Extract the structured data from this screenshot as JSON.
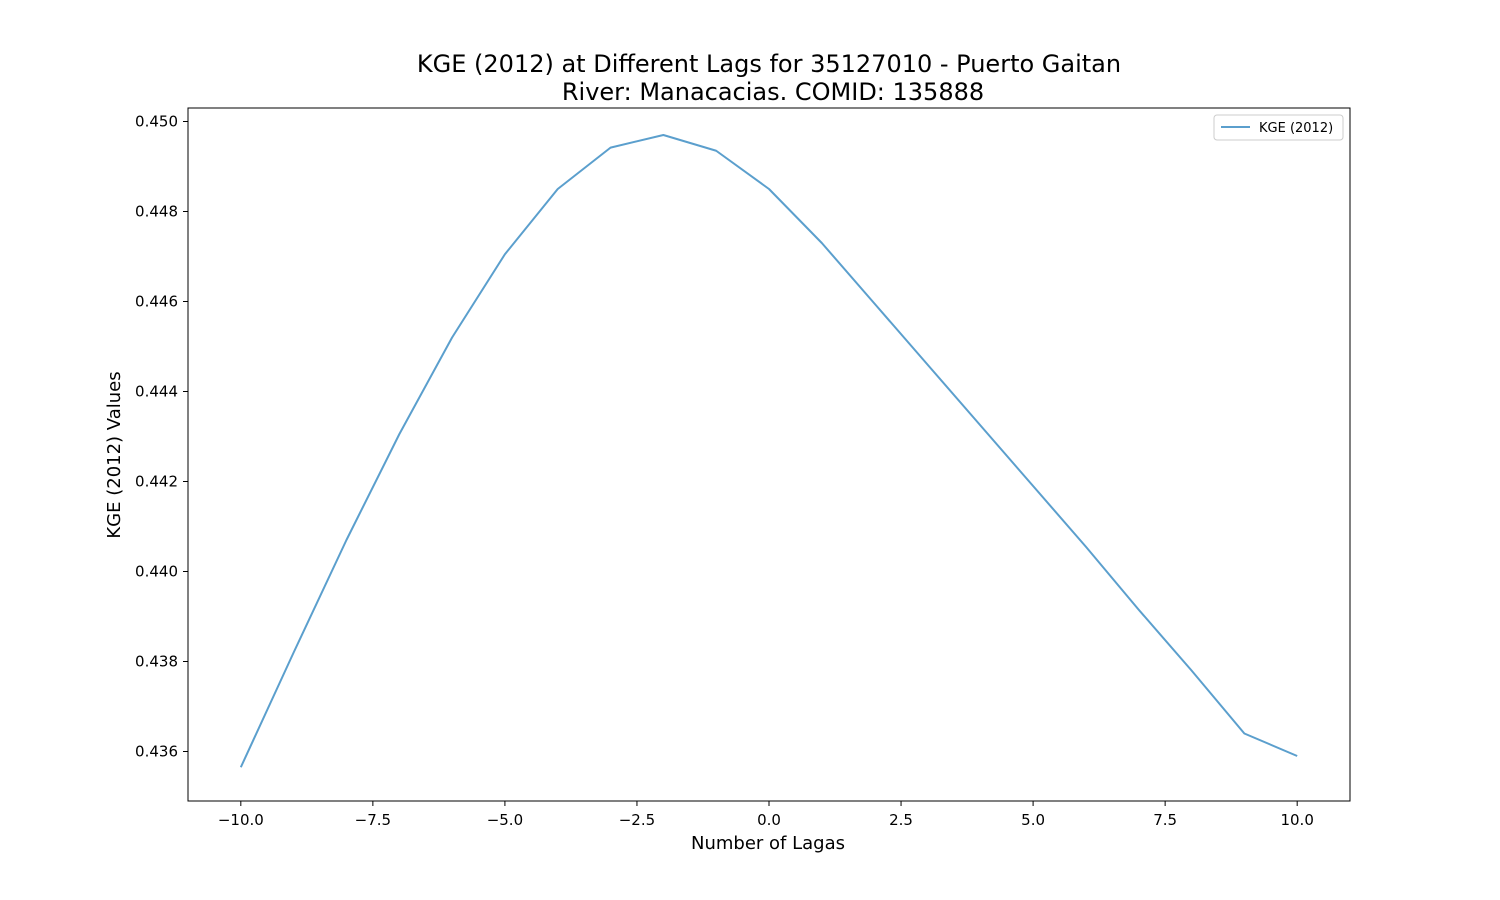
{
  "chart_data": {
    "type": "line",
    "title": "KGE (2012) at Different Lags for 35127010 - Puerto Gaitan",
    "subtitle": "River: Manacacias. COMID: 135888",
    "xlabel": "Number of Lagas",
    "ylabel": "KGE (2012) Values",
    "xlim": [
      -11,
      11
    ],
    "ylim": [
      0.4349,
      0.4503
    ],
    "x_ticks": [
      -10.0,
      -7.5,
      -5.0,
      -2.5,
      0.0,
      2.5,
      5.0,
      7.5,
      10.0
    ],
    "x_tick_labels": [
      "−10.0",
      "−7.5",
      "−5.0",
      "−2.5",
      "0.0",
      "2.5",
      "5.0",
      "7.5",
      "10.0"
    ],
    "y_ticks": [
      0.436,
      0.438,
      0.44,
      0.442,
      0.444,
      0.446,
      0.448,
      0.45
    ],
    "y_tick_labels": [
      "0.436",
      "0.438",
      "0.440",
      "0.442",
      "0.444",
      "0.446",
      "0.448",
      "0.450"
    ],
    "grid": false,
    "legend_position": "top-right",
    "series": [
      {
        "name": "KGE (2012)",
        "color": "#5b9fcd",
        "x": [
          -10,
          -9,
          -8,
          -7,
          -6,
          -5,
          -4,
          -3,
          -2,
          -1,
          0,
          1,
          2,
          3,
          4,
          5,
          6,
          7,
          8,
          9,
          10
        ],
        "y": [
          0.43565,
          0.4382,
          0.4407,
          0.44305,
          0.4452,
          0.44705,
          0.4485,
          0.44942,
          0.4497,
          0.44935,
          0.4485,
          0.4473,
          0.44595,
          0.4446,
          0.44325,
          0.4419,
          0.44055,
          0.43915,
          0.4378,
          0.4364,
          0.4359
        ]
      }
    ]
  }
}
